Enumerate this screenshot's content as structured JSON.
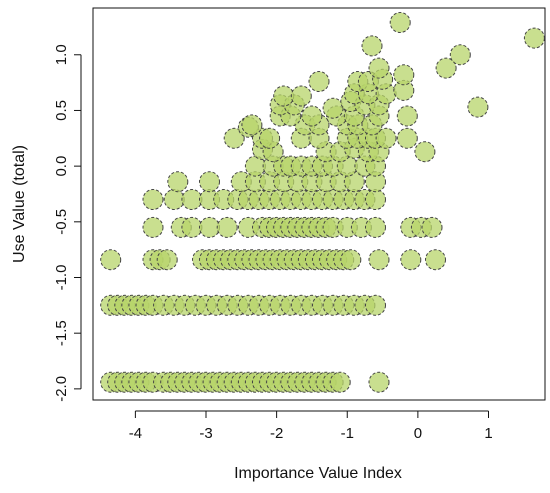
{
  "chart_data": {
    "type": "scatter",
    "title": "",
    "xlabel": "Importance Value Index",
    "ylabel": "Use Value (total)",
    "xlim": [
      -4.6,
      1.8
    ],
    "ylim": [
      -2.1,
      1.42
    ],
    "xticks": [
      -4,
      -3,
      -2,
      -1,
      0,
      1
    ],
    "xtick_labels": [
      "-4",
      "-3",
      "-2",
      "-1",
      "0",
      "1"
    ],
    "yticks": [
      -2.0,
      -1.5,
      -1.0,
      -0.5,
      0.0,
      0.5,
      1.0
    ],
    "ytick_labels": [
      "-2.0",
      "-1.5",
      "-1.0",
      "-0.5",
      "0.0",
      "0.5",
      "1.0"
    ],
    "grid": false,
    "legend": "none",
    "marker_fill": "#b7d46a",
    "marker_stroke": "#444444",
    "points": [
      {
        "x": -4.35,
        "y": -1.94
      },
      {
        "x": -4.25,
        "y": -1.94
      },
      {
        "x": -4.15,
        "y": -1.94
      },
      {
        "x": -4.05,
        "y": -1.94
      },
      {
        "x": -3.95,
        "y": -1.94
      },
      {
        "x": -3.85,
        "y": -1.94
      },
      {
        "x": -3.75,
        "y": -1.94
      },
      {
        "x": -3.6,
        "y": -1.94
      },
      {
        "x": -3.5,
        "y": -1.94
      },
      {
        "x": -3.4,
        "y": -1.94
      },
      {
        "x": -3.3,
        "y": -1.94
      },
      {
        "x": -3.2,
        "y": -1.94
      },
      {
        "x": -3.1,
        "y": -1.94
      },
      {
        "x": -3.0,
        "y": -1.94
      },
      {
        "x": -2.9,
        "y": -1.94
      },
      {
        "x": -2.8,
        "y": -1.94
      },
      {
        "x": -2.7,
        "y": -1.94
      },
      {
        "x": -2.6,
        "y": -1.94
      },
      {
        "x": -2.5,
        "y": -1.94
      },
      {
        "x": -2.4,
        "y": -1.94
      },
      {
        "x": -2.3,
        "y": -1.94
      },
      {
        "x": -2.2,
        "y": -1.94
      },
      {
        "x": -2.1,
        "y": -1.94
      },
      {
        "x": -2.0,
        "y": -1.94
      },
      {
        "x": -1.9,
        "y": -1.94
      },
      {
        "x": -1.8,
        "y": -1.94
      },
      {
        "x": -1.7,
        "y": -1.94
      },
      {
        "x": -1.6,
        "y": -1.94
      },
      {
        "x": -1.5,
        "y": -1.94
      },
      {
        "x": -1.4,
        "y": -1.94
      },
      {
        "x": -1.3,
        "y": -1.94
      },
      {
        "x": -1.2,
        "y": -1.94
      },
      {
        "x": -1.1,
        "y": -1.94
      },
      {
        "x": -0.55,
        "y": -1.94
      },
      {
        "x": -4.35,
        "y": -1.25
      },
      {
        "x": -4.25,
        "y": -1.25
      },
      {
        "x": -4.15,
        "y": -1.25
      },
      {
        "x": -4.05,
        "y": -1.25
      },
      {
        "x": -3.95,
        "y": -1.25
      },
      {
        "x": -3.85,
        "y": -1.25
      },
      {
        "x": -3.75,
        "y": -1.25
      },
      {
        "x": -3.6,
        "y": -1.25
      },
      {
        "x": -3.45,
        "y": -1.25
      },
      {
        "x": -3.3,
        "y": -1.25
      },
      {
        "x": -3.15,
        "y": -1.25
      },
      {
        "x": -3.0,
        "y": -1.25
      },
      {
        "x": -2.85,
        "y": -1.25
      },
      {
        "x": -2.7,
        "y": -1.25
      },
      {
        "x": -2.55,
        "y": -1.25
      },
      {
        "x": -2.4,
        "y": -1.25
      },
      {
        "x": -2.25,
        "y": -1.25
      },
      {
        "x": -2.1,
        "y": -1.25
      },
      {
        "x": -1.95,
        "y": -1.25
      },
      {
        "x": -1.8,
        "y": -1.25
      },
      {
        "x": -1.65,
        "y": -1.25
      },
      {
        "x": -1.5,
        "y": -1.25
      },
      {
        "x": -1.35,
        "y": -1.25
      },
      {
        "x": -1.2,
        "y": -1.25
      },
      {
        "x": -1.05,
        "y": -1.25
      },
      {
        "x": -0.9,
        "y": -1.25
      },
      {
        "x": -0.75,
        "y": -1.25
      },
      {
        "x": -0.6,
        "y": -1.25
      },
      {
        "x": -4.35,
        "y": -0.84
      },
      {
        "x": -3.75,
        "y": -0.84
      },
      {
        "x": -3.65,
        "y": -0.84
      },
      {
        "x": -3.55,
        "y": -0.84
      },
      {
        "x": -3.05,
        "y": -0.84
      },
      {
        "x": -2.95,
        "y": -0.84
      },
      {
        "x": -2.85,
        "y": -0.84
      },
      {
        "x": -2.75,
        "y": -0.84
      },
      {
        "x": -2.65,
        "y": -0.84
      },
      {
        "x": -2.55,
        "y": -0.84
      },
      {
        "x": -2.45,
        "y": -0.84
      },
      {
        "x": -2.35,
        "y": -0.84
      },
      {
        "x": -2.25,
        "y": -0.84
      },
      {
        "x": -2.15,
        "y": -0.84
      },
      {
        "x": -2.05,
        "y": -0.84
      },
      {
        "x": -1.95,
        "y": -0.84
      },
      {
        "x": -1.85,
        "y": -0.84
      },
      {
        "x": -1.75,
        "y": -0.84
      },
      {
        "x": -1.65,
        "y": -0.84
      },
      {
        "x": -1.55,
        "y": -0.84
      },
      {
        "x": -1.45,
        "y": -0.84
      },
      {
        "x": -1.35,
        "y": -0.84
      },
      {
        "x": -1.25,
        "y": -0.84
      },
      {
        "x": -1.15,
        "y": -0.84
      },
      {
        "x": -1.05,
        "y": -0.84
      },
      {
        "x": -0.95,
        "y": -0.84
      },
      {
        "x": -0.55,
        "y": -0.84
      },
      {
        "x": -0.1,
        "y": -0.84
      },
      {
        "x": 0.25,
        "y": -0.84
      },
      {
        "x": -3.75,
        "y": -0.55
      },
      {
        "x": -3.35,
        "y": -0.55
      },
      {
        "x": -3.2,
        "y": -0.55
      },
      {
        "x": -2.95,
        "y": -0.55
      },
      {
        "x": -2.7,
        "y": -0.55
      },
      {
        "x": -2.4,
        "y": -0.55
      },
      {
        "x": -2.2,
        "y": -0.55
      },
      {
        "x": -2.1,
        "y": -0.55
      },
      {
        "x": -2.0,
        "y": -0.55
      },
      {
        "x": -1.9,
        "y": -0.55
      },
      {
        "x": -1.8,
        "y": -0.55
      },
      {
        "x": -1.7,
        "y": -0.55
      },
      {
        "x": -1.6,
        "y": -0.55
      },
      {
        "x": -1.5,
        "y": -0.55
      },
      {
        "x": -1.4,
        "y": -0.55
      },
      {
        "x": -1.3,
        "y": -0.55
      },
      {
        "x": -1.2,
        "y": -0.55
      },
      {
        "x": -1.0,
        "y": -0.55
      },
      {
        "x": -0.8,
        "y": -0.55
      },
      {
        "x": -0.6,
        "y": -0.55
      },
      {
        "x": -0.1,
        "y": -0.55
      },
      {
        "x": 0.05,
        "y": -0.55
      },
      {
        "x": 0.2,
        "y": -0.55
      },
      {
        "x": -3.75,
        "y": -0.3
      },
      {
        "x": -3.45,
        "y": -0.3
      },
      {
        "x": -3.2,
        "y": -0.3
      },
      {
        "x": -2.95,
        "y": -0.3
      },
      {
        "x": -2.75,
        "y": -0.3
      },
      {
        "x": -2.55,
        "y": -0.3
      },
      {
        "x": -2.4,
        "y": -0.3
      },
      {
        "x": -2.25,
        "y": -0.3
      },
      {
        "x": -2.1,
        "y": -0.3
      },
      {
        "x": -1.95,
        "y": -0.3
      },
      {
        "x": -1.8,
        "y": -0.3
      },
      {
        "x": -1.65,
        "y": -0.3
      },
      {
        "x": -1.5,
        "y": -0.3
      },
      {
        "x": -1.35,
        "y": -0.3
      },
      {
        "x": -1.2,
        "y": -0.3
      },
      {
        "x": -1.05,
        "y": -0.3
      },
      {
        "x": -0.9,
        "y": -0.3
      },
      {
        "x": -0.75,
        "y": -0.3
      },
      {
        "x": -0.6,
        "y": -0.3
      },
      {
        "x": -3.4,
        "y": -0.14
      },
      {
        "x": -2.95,
        "y": -0.14
      },
      {
        "x": -2.5,
        "y": -0.14
      },
      {
        "x": -2.3,
        "y": -0.14
      },
      {
        "x": -2.1,
        "y": -0.14
      },
      {
        "x": -1.9,
        "y": -0.14
      },
      {
        "x": -1.7,
        "y": -0.14
      },
      {
        "x": -1.5,
        "y": -0.14
      },
      {
        "x": -1.3,
        "y": -0.14
      },
      {
        "x": -1.1,
        "y": -0.14
      },
      {
        "x": -0.9,
        "y": -0.14
      },
      {
        "x": -0.6,
        "y": -0.14
      },
      {
        "x": -2.3,
        "y": 0.0
      },
      {
        "x": -2.05,
        "y": 0.0
      },
      {
        "x": -1.9,
        "y": 0.0
      },
      {
        "x": -1.8,
        "y": 0.0
      },
      {
        "x": -1.65,
        "y": 0.0
      },
      {
        "x": -1.5,
        "y": 0.0
      },
      {
        "x": -1.35,
        "y": 0.0
      },
      {
        "x": -1.2,
        "y": 0.0
      },
      {
        "x": -1.0,
        "y": 0.0
      },
      {
        "x": -0.75,
        "y": 0.0
      },
      {
        "x": -0.6,
        "y": 0.0
      },
      {
        "x": -2.2,
        "y": 0.15
      },
      {
        "x": -2.05,
        "y": 0.13
      },
      {
        "x": -1.3,
        "y": 0.13
      },
      {
        "x": -1.1,
        "y": 0.13
      },
      {
        "x": -0.9,
        "y": 0.16
      },
      {
        "x": -0.7,
        "y": 0.13
      },
      {
        "x": -0.55,
        "y": 0.13
      },
      {
        "x": 0.1,
        "y": 0.13
      },
      {
        "x": -2.6,
        "y": 0.25
      },
      {
        "x": -2.2,
        "y": 0.25
      },
      {
        "x": -2.1,
        "y": 0.25
      },
      {
        "x": -1.65,
        "y": 0.25
      },
      {
        "x": -1.4,
        "y": 0.25
      },
      {
        "x": -1.0,
        "y": 0.25
      },
      {
        "x": -0.85,
        "y": 0.25
      },
      {
        "x": -0.7,
        "y": 0.25
      },
      {
        "x": -0.6,
        "y": 0.25
      },
      {
        "x": -0.45,
        "y": 0.25
      },
      {
        "x": -0.15,
        "y": 0.25
      },
      {
        "x": -2.4,
        "y": 0.35
      },
      {
        "x": -2.35,
        "y": 0.37
      },
      {
        "x": -1.6,
        "y": 0.37
      },
      {
        "x": -1.4,
        "y": 0.37
      },
      {
        "x": -1.0,
        "y": 0.37
      },
      {
        "x": -0.85,
        "y": 0.37
      },
      {
        "x": -0.65,
        "y": 0.37
      },
      {
        "x": -1.95,
        "y": 0.45
      },
      {
        "x": -1.8,
        "y": 0.45
      },
      {
        "x": -1.5,
        "y": 0.45
      },
      {
        "x": -1.15,
        "y": 0.45
      },
      {
        "x": -0.9,
        "y": 0.45
      },
      {
        "x": -0.55,
        "y": 0.45
      },
      {
        "x": -0.15,
        "y": 0.45
      },
      {
        "x": -1.95,
        "y": 0.55
      },
      {
        "x": -1.75,
        "y": 0.55
      },
      {
        "x": -1.2,
        "y": 0.52
      },
      {
        "x": -0.95,
        "y": 0.58
      },
      {
        "x": -0.75,
        "y": 0.55
      },
      {
        "x": -0.55,
        "y": 0.55
      },
      {
        "x": -1.9,
        "y": 0.63
      },
      {
        "x": -1.65,
        "y": 0.63
      },
      {
        "x": -0.9,
        "y": 0.65
      },
      {
        "x": -0.7,
        "y": 0.65
      },
      {
        "x": -0.45,
        "y": 0.65
      },
      {
        "x": -0.2,
        "y": 0.68
      },
      {
        "x": -1.4,
        "y": 0.76
      },
      {
        "x": -0.85,
        "y": 0.76
      },
      {
        "x": -0.7,
        "y": 0.76
      },
      {
        "x": -0.5,
        "y": 0.78
      },
      {
        "x": -0.2,
        "y": 0.82
      },
      {
        "x": -0.55,
        "y": 0.88
      },
      {
        "x": -0.65,
        "y": 1.08
      },
      {
        "x": -0.25,
        "y": 1.29
      },
      {
        "x": 0.4,
        "y": 0.88
      },
      {
        "x": 0.6,
        "y": 1.0
      },
      {
        "x": 0.85,
        "y": 0.53
      },
      {
        "x": 1.65,
        "y": 1.15
      }
    ]
  }
}
